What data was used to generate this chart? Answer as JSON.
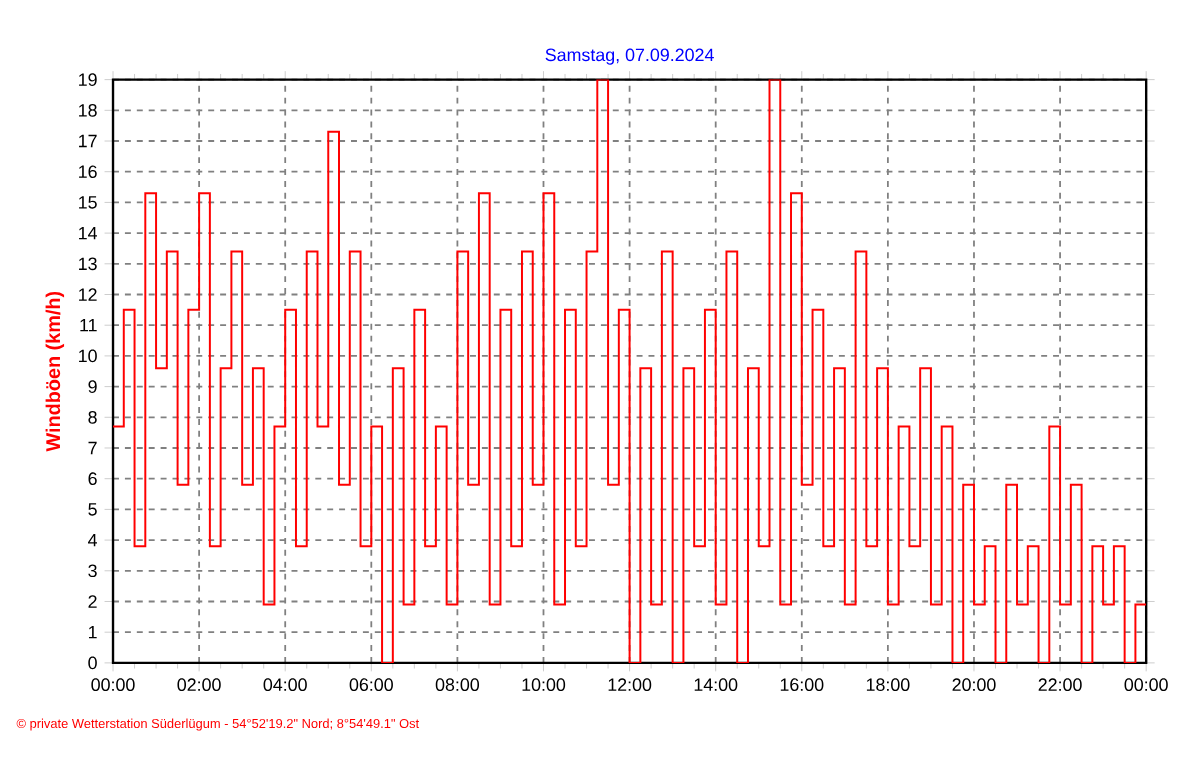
{
  "chart_data": {
    "type": "step",
    "title": "Samstag, 07.09.2024",
    "ylabel": "Windböen  (km/h)",
    "annotations": [
      "© private Wetterstation Süderlügum  -  54°52'19.2\" Nord; 8°54'49.1\" Ost"
    ],
    "x": [
      0,
      0.25,
      0.5,
      0.75,
      1,
      1.25,
      1.5,
      1.75,
      2,
      2.25,
      2.5,
      2.75,
      3,
      3.25,
      3.5,
      3.75,
      4,
      4.25,
      4.5,
      4.75,
      5,
      5.25,
      5.5,
      5.75,
      6,
      6.25,
      6.5,
      6.75,
      7,
      7.25,
      7.5,
      7.75,
      8,
      8.25,
      8.5,
      8.75,
      9,
      9.25,
      9.5,
      9.75,
      10,
      10.25,
      10.5,
      10.75,
      11,
      11.25,
      11.5,
      11.75,
      12,
      12.25,
      12.5,
      12.75,
      13,
      13.25,
      13.5,
      13.75,
      14,
      14.25,
      14.5,
      14.75,
      15,
      15.25,
      15.5,
      15.75,
      16,
      16.25,
      16.5,
      16.75,
      17,
      17.25,
      17.5,
      17.75,
      18,
      18.25,
      18.5,
      18.75,
      19,
      19.25,
      19.5,
      19.75,
      20,
      20.25,
      20.5,
      20.75,
      21,
      21.25,
      21.5,
      21.75,
      22,
      22.25,
      22.5,
      22.75,
      23,
      23.25,
      23.5,
      23.75,
      24
    ],
    "series": [
      {
        "color": "#ff0000",
        "values": [
          7.7,
          11.5,
          3.8,
          15.3,
          9.6,
          13.4,
          5.8,
          11.5,
          15.3,
          3.8,
          9.6,
          13.4,
          5.8,
          9.6,
          1.9,
          7.7,
          11.5,
          3.8,
          13.4,
          7.7,
          17.3,
          5.8,
          13.4,
          3.8,
          7.7,
          0,
          9.6,
          1.9,
          11.5,
          3.8,
          7.7,
          1.9,
          13.4,
          5.8,
          15.3,
          1.9,
          11.5,
          3.8,
          13.4,
          5.8,
          15.3,
          1.9,
          11.5,
          3.8,
          13.4,
          19,
          5.8,
          11.5,
          0,
          9.6,
          1.9,
          13.4,
          0,
          9.6,
          3.8,
          11.5,
          1.9,
          13.4,
          0,
          9.6,
          3.8,
          19,
          1.9,
          15.3,
          5.8,
          11.5,
          3.8,
          9.6,
          1.9,
          13.4,
          3.8,
          9.6,
          1.9,
          7.7,
          3.8,
          9.6,
          1.9,
          7.7,
          0,
          5.8,
          1.9,
          3.8,
          0,
          5.8,
          1.9,
          3.8,
          0,
          7.7,
          1.9,
          5.8,
          0,
          3.8,
          1.9,
          3.8,
          0,
          1.9,
          1.9
        ]
      }
    ],
    "xlim": [
      0,
      24
    ],
    "xticks": [
      {
        "value": 0,
        "label": "00:00"
      },
      {
        "value": 2,
        "label": "02:00"
      },
      {
        "value": 4,
        "label": "04:00"
      },
      {
        "value": 6,
        "label": "06:00"
      },
      {
        "value": 8,
        "label": "08:00"
      },
      {
        "value": 10,
        "label": "10:00"
      },
      {
        "value": 12,
        "label": "12:00"
      },
      {
        "value": 14,
        "label": "14:00"
      },
      {
        "value": 16,
        "label": "16:00"
      },
      {
        "value": 18,
        "label": "18:00"
      },
      {
        "value": 20,
        "label": "20:00"
      },
      {
        "value": 22,
        "label": "22:00"
      },
      {
        "value": 24,
        "label": "00:00"
      }
    ],
    "ylim": [
      0,
      19
    ],
    "yticks": [
      0,
      1,
      2,
      3,
      4,
      5,
      6,
      7,
      8,
      9,
      10,
      11,
      12,
      13,
      14,
      15,
      16,
      17,
      18,
      19
    ],
    "grid": true
  }
}
